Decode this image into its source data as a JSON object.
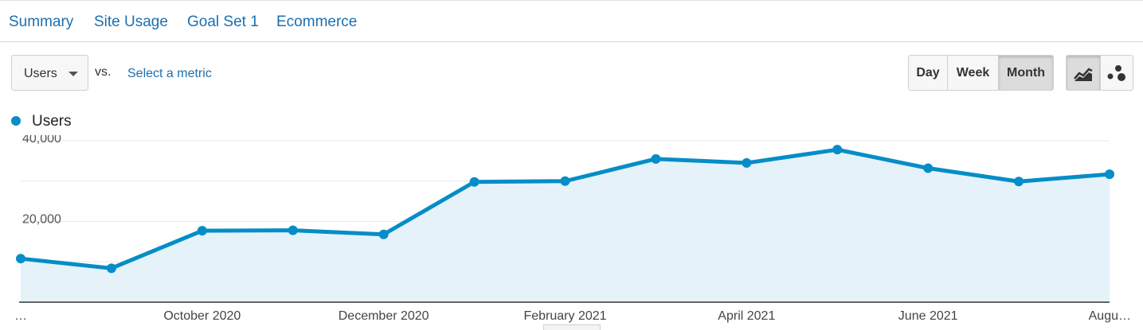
{
  "tabs": [
    {
      "label": "Summary",
      "active": true
    },
    {
      "label": "Site Usage",
      "active": false
    },
    {
      "label": "Goal Set 1",
      "active": false
    },
    {
      "label": "Ecommerce",
      "active": false
    }
  ],
  "controls": {
    "metric_label": "Users",
    "vs_label": "vs.",
    "select_metric_label": "Select a metric",
    "granularity": [
      {
        "label": "Day",
        "active": false
      },
      {
        "label": "Week",
        "active": false
      },
      {
        "label": "Month",
        "active": true
      }
    ],
    "chart_type_buttons": [
      {
        "icon": "line-chart-icon",
        "active": true
      },
      {
        "icon": "motion-chart-icon",
        "active": false
      }
    ]
  },
  "colors": {
    "series": "#058dc7",
    "area_fill": "#e5f2fa",
    "link": "#1b6fb0"
  },
  "chart_data": {
    "type": "area",
    "series": [
      {
        "name": "Users",
        "values": [
          10800,
          8400,
          17700,
          17800,
          16800,
          29800,
          30000,
          35500,
          34500,
          37800,
          33200,
          29900,
          31700
        ]
      }
    ],
    "x_tick_labels": [
      "…",
      "October 2020",
      "December 2020",
      "February 2021",
      "April 2021",
      "June 2021",
      "Augu…"
    ],
    "y_tick_labels": [
      "40,000",
      "20,000"
    ],
    "ylim": [
      0,
      40000
    ],
    "grid": true,
    "legend": "top-left"
  }
}
